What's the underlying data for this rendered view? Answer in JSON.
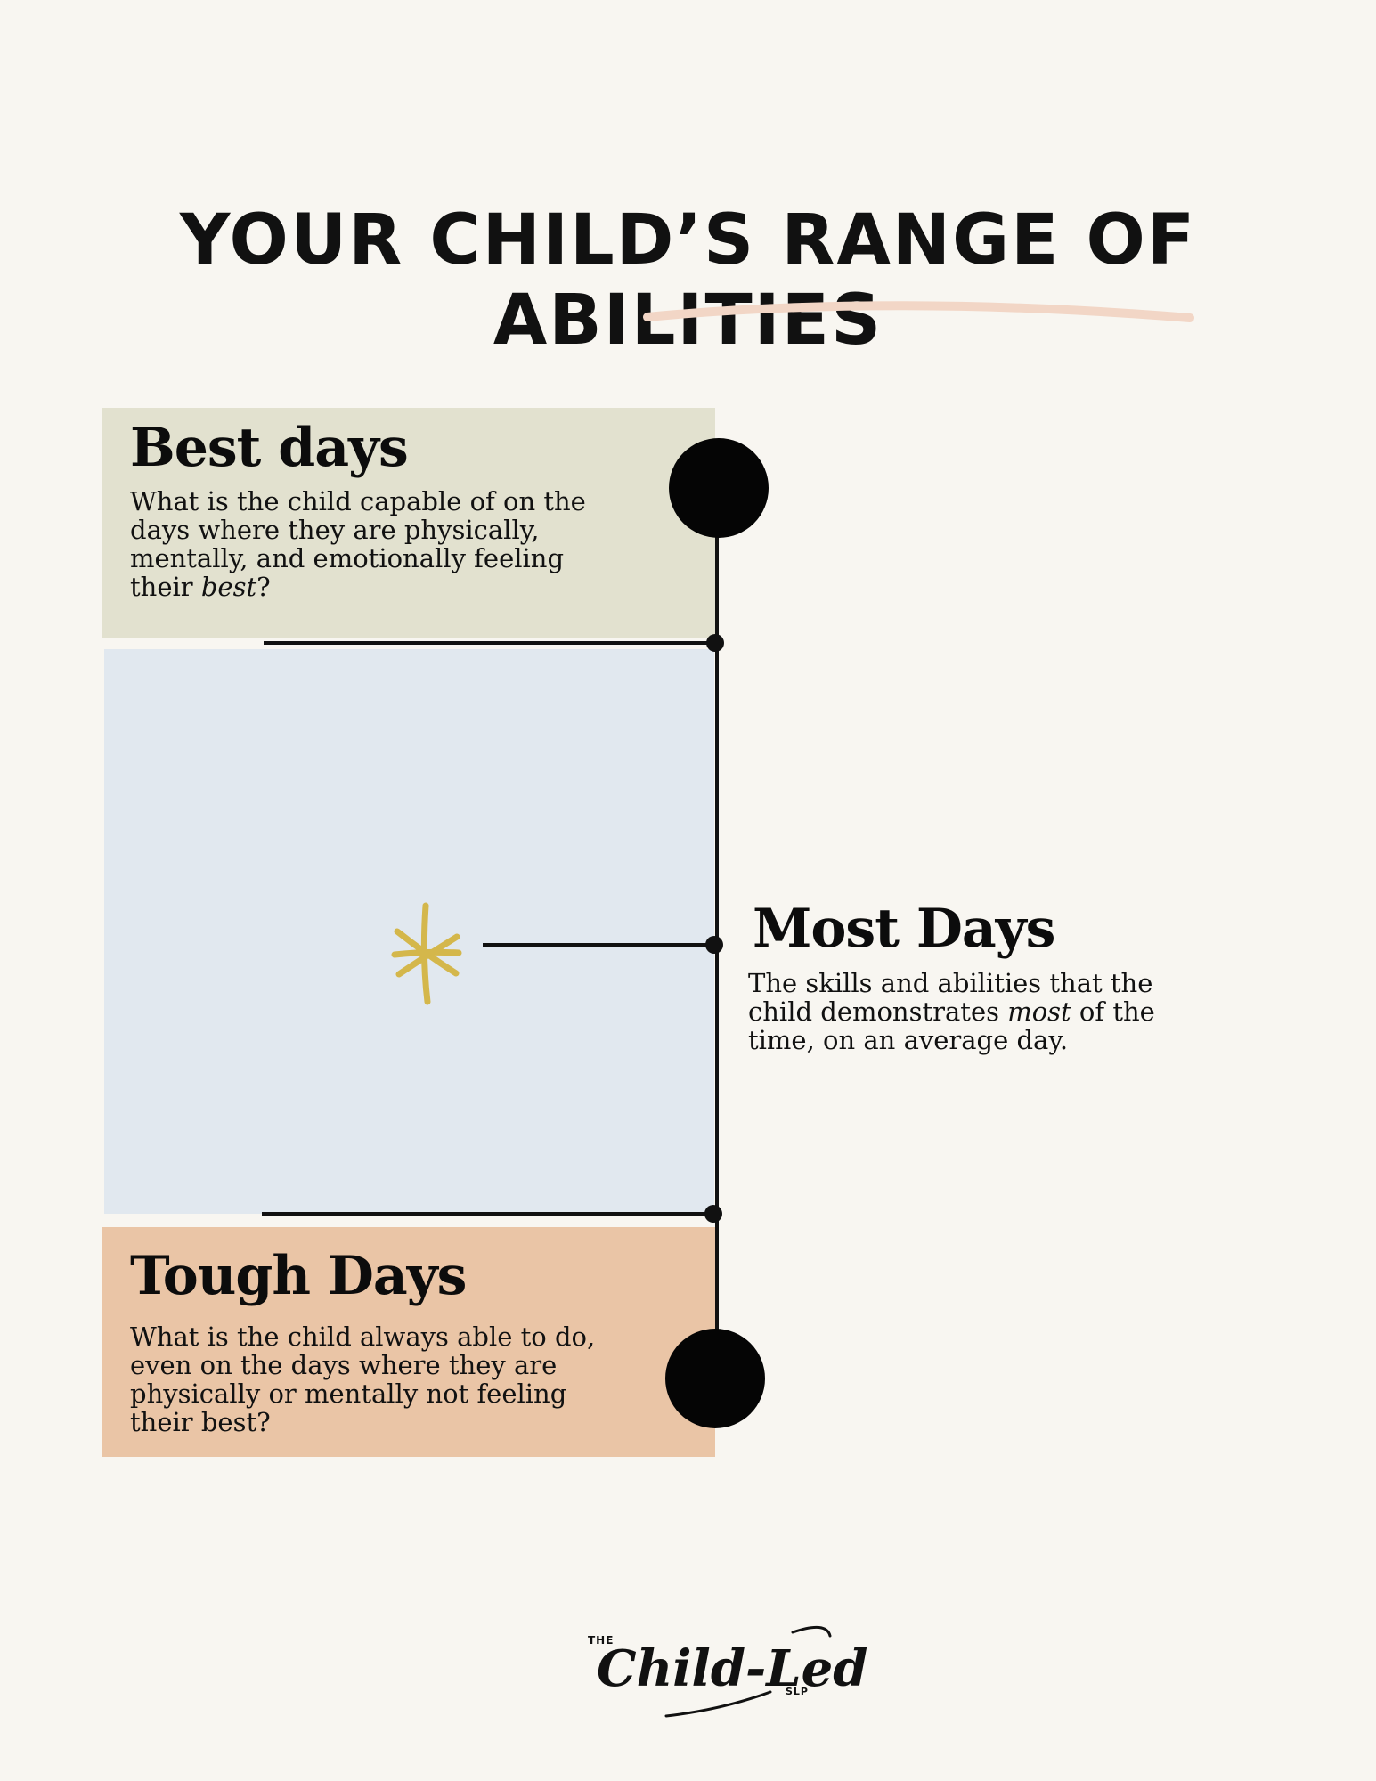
{
  "title": "YOUR CHILD’S RANGE OF ABILITIES",
  "sections": {
    "best": {
      "heading": "Best days",
      "desc_before": "What is the child capable of on the days where they are physically, mentally, and emotionally feeling their ",
      "desc_em": "best",
      "desc_after": "?"
    },
    "most": {
      "heading": "Most Days",
      "desc_before": "The skills and abilities that the child demonstrates ",
      "desc_em": "most",
      "desc_after": " of the time, on an average day."
    },
    "tough": {
      "heading": "Tough Days",
      "desc": "What is the child always able to do, even on the days where they are physically or mentally not feeling their best?"
    }
  },
  "logo": {
    "the": "THE",
    "name": "Child-Led",
    "slp": "SLP"
  },
  "colors": {
    "background": "#f8f6f1",
    "best_box": "#e2e1cf",
    "most_box": "#e1e8ef",
    "tough_box": "#eac5a6",
    "underline": "#f2d6c6",
    "star": "#d4b74b"
  }
}
